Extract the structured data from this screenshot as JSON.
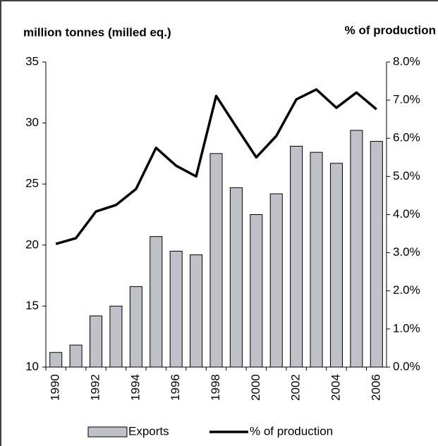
{
  "chart_data": {
    "type": "bar_line",
    "y_axis_label": "million tonnes (milled eq.)",
    "y2_axis_label": "% of production",
    "categories": [
      "1990",
      null,
      "1992",
      null,
      "1994",
      null,
      "1996",
      null,
      "1998",
      null,
      "2000",
      null,
      "2002",
      null,
      "2004",
      null,
      "2006"
    ],
    "series": [
      {
        "name": "Exports",
        "type": "bar",
        "color": "#c0c0c8",
        "values": [
          11.2,
          11.8,
          14.2,
          15.0,
          16.6,
          20.7,
          19.5,
          19.2,
          27.5,
          24.7,
          22.5,
          24.2,
          28.1,
          27.6,
          26.7,
          29.4,
          28.5
        ]
      },
      {
        "name": "% of production",
        "type": "line",
        "axis": "y2",
        "color": "#000000",
        "values": [
          3.23,
          3.38,
          4.08,
          4.25,
          4.67,
          5.75,
          5.28,
          5.0,
          7.11,
          6.3,
          5.5,
          6.06,
          7.02,
          7.28,
          6.8,
          7.2,
          6.76
        ]
      }
    ],
    "ylim": [
      10,
      35
    ],
    "yticks": [
      10,
      15,
      20,
      25,
      30,
      35
    ],
    "y2lim": [
      0,
      8
    ],
    "y2ticks": [
      {
        "value": 0,
        "label": "0.0%"
      },
      {
        "value": 1,
        "label": "1.0%"
      },
      {
        "value": 2,
        "label": "2.0%"
      },
      {
        "value": 3,
        "label": "3.0%"
      },
      {
        "value": 4,
        "label": "4.0%"
      },
      {
        "value": 5,
        "label": "5.0%"
      },
      {
        "value": 6,
        "label": "6.0%"
      },
      {
        "value": 7,
        "label": "7.0%"
      },
      {
        "value": 8,
        "label": "8.0%"
      }
    ],
    "legend": "bottom"
  }
}
